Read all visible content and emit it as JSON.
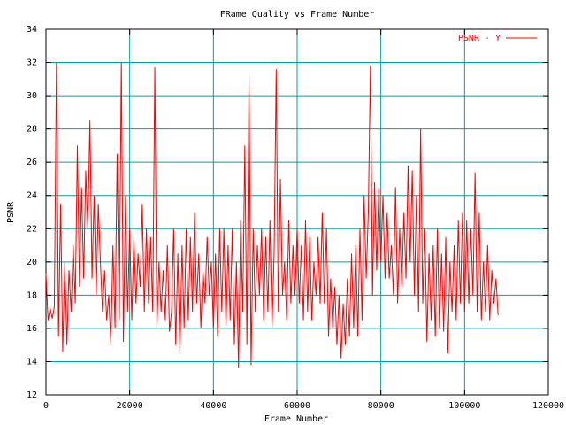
{
  "chart_data": {
    "type": "line",
    "title": "FRame Quality vs Frame Number",
    "xlabel": "Frame Number",
    "ylabel": "PSNR",
    "xlim": [
      0,
      120000
    ],
    "xticks": [
      0,
      20000,
      40000,
      60000,
      80000,
      100000,
      120000
    ],
    "ylim": [
      12,
      34
    ],
    "yticks": [
      12,
      14,
      16,
      18,
      20,
      22,
      24,
      26,
      28,
      30,
      32,
      34
    ],
    "grid": true,
    "legend": "upper right",
    "x": [
      0,
      500,
      1000,
      1500,
      2000,
      2500,
      3000,
      3500,
      4000,
      4500,
      5000,
      5500,
      6000,
      6500,
      7000,
      7500,
      8000,
      8500,
      9000,
      9500,
      10000,
      10500,
      11000,
      11500,
      12000,
      12500,
      13000,
      13500,
      14000,
      14500,
      15000,
      15500,
      16000,
      16500,
      17000,
      17500,
      18000,
      18500,
      19000,
      19500,
      20000,
      20500,
      21000,
      21500,
      22000,
      22500,
      23000,
      23500,
      24000,
      24500,
      25000,
      25500,
      26000,
      26500,
      27000,
      27500,
      28000,
      28500,
      29000,
      29500,
      30000,
      30500,
      31000,
      31500,
      32000,
      32500,
      33000,
      33500,
      34000,
      34500,
      35000,
      35500,
      36000,
      36500,
      37000,
      37500,
      38000,
      38500,
      39000,
      39500,
      40000,
      40500,
      41000,
      41500,
      42000,
      42500,
      43000,
      43500,
      44000,
      44500,
      45000,
      45500,
      46000,
      46500,
      47000,
      47500,
      48000,
      48500,
      49000,
      49500,
      50000,
      50500,
      51000,
      51500,
      52000,
      52500,
      53000,
      53500,
      54000,
      54500,
      55000,
      55500,
      56000,
      56500,
      57000,
      57500,
      58000,
      58500,
      59000,
      59500,
      60000,
      60500,
      61000,
      61500,
      62000,
      62500,
      63000,
      63500,
      64000,
      64500,
      65000,
      65500,
      66000,
      66500,
      67000,
      67500,
      68000,
      68500,
      69000,
      69500,
      70000,
      70500,
      71000,
      71500,
      72000,
      72500,
      73000,
      73500,
      74000,
      74500,
      75000,
      75500,
      76000,
      76500,
      77000,
      77500,
      78000,
      78500,
      79000,
      79500,
      80000,
      80500,
      81000,
      81500,
      82000,
      82500,
      83000,
      83500,
      84000,
      84500,
      85000,
      85500,
      86000,
      86500,
      87000,
      87500,
      88000,
      88500,
      89000,
      89500,
      90000,
      90500,
      91000,
      91500,
      92000,
      92500,
      93000,
      93500,
      94000,
      94500,
      95000,
      95500,
      96000,
      96500,
      97000,
      97500,
      98000,
      98500,
      99000,
      99500,
      100000,
      100500,
      101000,
      101500,
      102000,
      102500,
      103000,
      103500,
      104000,
      104500,
      105000,
      105500,
      106000,
      106500,
      107000,
      107500,
      108000
    ],
    "series": [
      {
        "name": "PSNR - Y",
        "color": "#ff0000",
        "values": [
          19.3,
          16.5,
          17.2,
          16.6,
          17.3,
          32.0,
          15.5,
          23.5,
          14.6,
          20.0,
          15.0,
          19.5,
          17.0,
          21.0,
          17.5,
          27.0,
          18.5,
          24.5,
          19.0,
          25.5,
          22.0,
          28.5,
          19.0,
          24.0,
          18.0,
          23.5,
          20.0,
          17.0,
          19.5,
          16.5,
          18.0,
          15.0,
          21.0,
          16.0,
          26.5,
          16.5,
          32.0,
          15.2,
          24.0,
          17.0,
          22.0,
          16.5,
          21.5,
          17.5,
          20.5,
          18.5,
          23.5,
          17.0,
          22.0,
          17.5,
          21.5,
          17.0,
          31.7,
          16.0,
          20.0,
          17.0,
          19.5,
          16.5,
          21.0,
          15.8,
          17.0,
          22.0,
          15.0,
          20.5,
          14.5,
          21.0,
          16.0,
          22.0,
          16.5,
          21.5,
          17.0,
          23.0,
          17.5,
          20.5,
          16.0,
          19.5,
          17.5,
          21.5,
          18.0,
          20.0,
          16.0,
          20.5,
          15.5,
          22.0,
          17.0,
          22.0,
          16.0,
          21.0,
          16.5,
          22.0,
          15.0,
          20.0,
          13.6,
          22.5,
          17.0,
          27.0,
          15.0,
          31.2,
          13.8,
          22.0,
          17.0,
          21.0,
          18.0,
          22.0,
          16.5,
          21.5,
          17.0,
          22.5,
          16.0,
          20.5,
          31.6,
          17.0,
          25.0,
          18.0,
          20.0,
          16.5,
          22.5,
          17.5,
          21.0,
          18.0,
          22.0,
          17.5,
          21.0,
          16.5,
          22.5,
          17.0,
          21.5,
          16.5,
          20.0,
          18.0,
          21.5,
          17.5,
          23.0,
          17.5,
          22.0,
          15.5,
          19.0,
          16.0,
          18.5,
          15.0,
          18.0,
          14.2,
          17.5,
          15.0,
          19.0,
          15.5,
          20.5,
          16.0,
          21.0,
          15.5,
          22.0,
          16.5,
          24.0,
          19.0,
          23.0,
          31.8,
          18.0,
          24.8,
          19.5,
          24.5,
          20.0,
          24.0,
          19.0,
          23.0,
          19.0,
          21.0,
          18.0,
          24.5,
          17.5,
          22.0,
          18.5,
          23.0,
          19.0,
          25.8,
          20.0,
          25.5,
          18.0,
          24.0,
          17.0,
          28.0,
          17.5,
          22.0,
          15.2,
          20.5,
          16.5,
          21.0,
          15.5,
          22.0,
          16.0,
          20.5,
          15.8,
          21.5,
          14.5,
          20.0,
          17.0,
          21.0,
          16.5,
          22.5,
          17.5,
          23.0,
          17.0,
          22.5,
          17.5,
          22.0,
          18.0,
          25.4,
          17.0,
          23.0,
          16.5,
          20.0,
          17.0,
          21.0,
          16.5,
          19.5,
          17.5,
          19.0,
          16.8
        ]
      }
    ]
  }
}
